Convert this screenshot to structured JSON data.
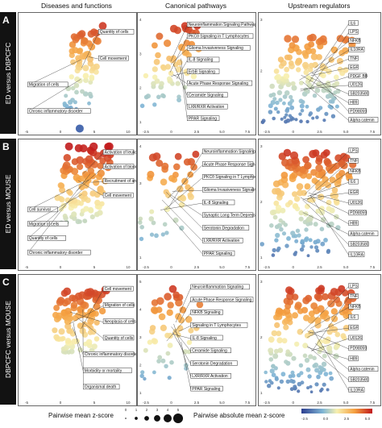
{
  "columns": [
    "Diseases and functions",
    "Canonical pathways",
    "Upstream regulators"
  ],
  "rows": [
    {
      "letter": "A",
      "label": "ED versus DBPCFC"
    },
    {
      "letter": "B",
      "label": "ED versus MOUSE"
    },
    {
      "letter": "C",
      "label": "DBPCFC versus MOUSE"
    }
  ],
  "panels": {
    "A1": {
      "labels": [
        "Quantity of cells",
        "Cell movement",
        "Migration of cells",
        "Chronic inflammatory disorder"
      ],
      "xticks": [
        "-5",
        "0",
        "5",
        "10"
      ],
      "yticks": []
    },
    "A2": {
      "labels": [
        "Neuroinflammation Signaling Pathway",
        "PKCθ Signaling in T Lymphocytes",
        "Glioma Invasiveness Signaling",
        "IL-8 Signaling",
        "ErbB Signaling",
        "Acute Phase Response Signaling",
        "Ceramide Signaling",
        "LXR/RXR Activation",
        "PPAR Signaling"
      ],
      "xticks": [
        "-2.5",
        "0",
        "2.5",
        "5.0",
        "7.5"
      ],
      "yticks": [
        "4",
        "3",
        "2",
        "1"
      ]
    },
    "A3": {
      "labels": [
        "IL6",
        "LPS",
        "NFKB",
        "IL10RA",
        "TNF",
        "EGF",
        "PDGF BB",
        "U0126",
        "SB203580",
        "H89",
        "PD98059",
        "Alpha catenin"
      ],
      "xticks": [
        "-2.5",
        "0",
        "2.5",
        "5.0",
        "7.5"
      ],
      "yticks": [
        "3",
        "2",
        "1"
      ]
    },
    "B1": {
      "labels": [
        "Activation of leukocytes",
        "Activation of blood cells",
        "Recruitment of antigen presenting cells",
        "Cell movement",
        "Cell survival",
        "Migration of cells",
        "Quantity of cells",
        "Chronic inflammatory disorder"
      ],
      "xticks": [
        "-5",
        "0",
        "5",
        "10"
      ],
      "yticks": []
    },
    "B2": {
      "labels": [
        "Neuroinflammation Signaling Pathway",
        "Acute Phase Response Signaling",
        "PKCθ Signaling in T Lymphocytes",
        "Glioma Invasiveness Signaling",
        "IL-8 Signaling",
        "Synaptic Long Term Depression",
        "Serotonin Degradation",
        "LXR/RXR Activation",
        "PPAR Signaling"
      ],
      "xticks": [
        "-2.5",
        "0",
        "2.5",
        "5.0",
        "7.5"
      ],
      "yticks": [
        "4",
        "3",
        "2",
        "1"
      ]
    },
    "B3": {
      "labels": [
        "LPS",
        "TNF",
        "NFKB",
        "IL6",
        "EGF",
        "U0126",
        "PD98059",
        "H89",
        "Alpha catenin",
        "SB203580",
        "IL10RA"
      ],
      "xticks": [
        "-2.5",
        "0",
        "2.5",
        "5.0",
        "7.5"
      ],
      "yticks": [
        "3",
        "2",
        "1"
      ]
    },
    "C1": {
      "labels": [
        "Cell movement",
        "Migration of cells",
        "Neoplasia of cells",
        "Quantity of cells",
        "Chronic inflammatory disorder",
        "Morbidity or mortality",
        "Organismal death"
      ],
      "xticks": [
        "-5",
        "0",
        "5",
        "10"
      ],
      "yticks": []
    },
    "C2": {
      "labels": [
        "Neuroinflammation Signaling",
        "Acute Phase Response Signaling",
        "NFKB Signaling",
        "Signaling in T Lymphocytes",
        "IL-8 Signaling",
        "Ceramide Signaling",
        "Serotonin Degradation",
        "LXR/RXR Activation",
        "PPAR Signaling"
      ],
      "xticks": [
        "-2.5",
        "0",
        "2.5",
        "5.0",
        "7.5"
      ],
      "yticks": [
        "5",
        "4",
        "3",
        "2",
        "1"
      ]
    },
    "C3": {
      "labels": [
        "LPS",
        "TNF",
        "NFKB",
        "IL6",
        "EGF",
        "U0126",
        "PD98059",
        "H89",
        "Alpha catenin",
        "SB203580",
        "IL10RA"
      ],
      "xticks": [
        "-2.5",
        "0",
        "2.5",
        "5.0",
        "7.5"
      ],
      "yticks": [
        "3",
        "2",
        "1"
      ]
    }
  },
  "legend": {
    "size_title": "Pairwise mean z-score",
    "size_values": [
      "0",
      "1",
      "2",
      "3",
      "4",
      "5"
    ],
    "color_title": "Pairwise absolute mean z-score",
    "color_ticks": [
      "-2.5",
      "0.0",
      "2.5",
      "5.0"
    ]
  },
  "colors": {
    "low": "#2c3e8f",
    "mid_low": "#7fb5d5",
    "mid": "#f7f0b0",
    "mid_high": "#f5a040",
    "high": "#c0181c",
    "row_band": "#121212"
  }
}
